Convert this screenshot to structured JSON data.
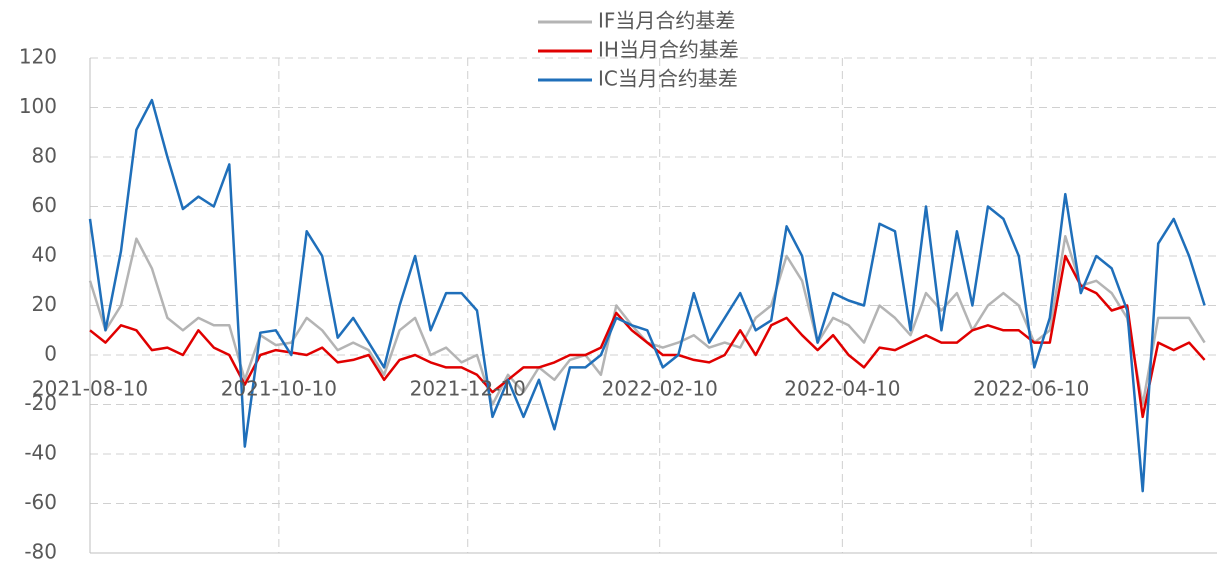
{
  "chart_data": {
    "type": "line",
    "x": [
      "2021-08-10",
      "2021-08-15",
      "2021-08-20",
      "2021-08-25",
      "2021-08-30",
      "2021-09-04",
      "2021-09-09",
      "2021-09-14",
      "2021-09-19",
      "2021-09-24",
      "2021-09-29",
      "2021-10-04",
      "2021-10-09",
      "2021-10-14",
      "2021-10-19",
      "2021-10-24",
      "2021-10-29",
      "2021-11-03",
      "2021-11-08",
      "2021-11-13",
      "2021-11-18",
      "2021-11-23",
      "2021-11-28",
      "2021-12-03",
      "2021-12-08",
      "2021-12-13",
      "2021-12-18",
      "2021-12-23",
      "2021-12-28",
      "2022-01-02",
      "2022-01-07",
      "2022-01-12",
      "2022-01-17",
      "2022-01-22",
      "2022-01-27",
      "2022-02-01",
      "2022-02-06",
      "2022-02-11",
      "2022-02-16",
      "2022-02-21",
      "2022-02-26",
      "2022-03-03",
      "2022-03-08",
      "2022-03-13",
      "2022-03-18",
      "2022-03-23",
      "2022-03-28",
      "2022-04-02",
      "2022-04-07",
      "2022-04-12",
      "2022-04-17",
      "2022-04-22",
      "2022-04-27",
      "2022-05-02",
      "2022-05-07",
      "2022-05-12",
      "2022-05-17",
      "2022-05-22",
      "2022-05-27",
      "2022-06-01",
      "2022-06-06",
      "2022-06-11",
      "2022-06-16",
      "2022-06-21",
      "2022-06-26",
      "2022-07-01",
      "2022-07-06",
      "2022-07-11",
      "2022-07-16",
      "2022-07-21",
      "2022-07-26",
      "2022-07-31",
      "2022-08-05"
    ],
    "series": [
      {
        "name": "IF当月合约基差",
        "color": "#b4b4b4",
        "values": [
          30,
          10,
          20,
          47,
          35,
          15,
          10,
          15,
          12,
          12,
          -10,
          8,
          4,
          5,
          15,
          10,
          2,
          5,
          2,
          -8,
          10,
          15,
          0,
          3,
          -3,
          0,
          -20,
          -8,
          -15,
          -5,
          -10,
          -2,
          0,
          -8,
          20,
          12,
          5,
          3,
          5,
          8,
          3,
          5,
          3,
          15,
          20,
          40,
          30,
          5,
          15,
          12,
          5,
          20,
          15,
          8,
          25,
          18,
          25,
          10,
          20,
          25,
          20,
          5,
          10,
          48,
          28,
          30,
          25,
          15,
          -20,
          15,
          15,
          15,
          5
        ]
      },
      {
        "name": "IH当月合约基差",
        "color": "#e00000",
        "values": [
          10,
          5,
          12,
          10,
          2,
          3,
          0,
          10,
          3,
          0,
          -12,
          0,
          2,
          1,
          0,
          3,
          -3,
          -2,
          0,
          -10,
          -2,
          0,
          -3,
          -5,
          -5,
          -8,
          -15,
          -10,
          -5,
          -5,
          -3,
          0,
          0,
          3,
          17,
          10,
          5,
          0,
          0,
          -2,
          -3,
          0,
          10,
          0,
          12,
          15,
          8,
          2,
          8,
          0,
          -5,
          3,
          2,
          5,
          8,
          5,
          5,
          10,
          12,
          10,
          10,
          5,
          5,
          40,
          28,
          25,
          18,
          20,
          -25,
          5,
          2,
          5,
          -2
        ]
      },
      {
        "name": "IC当月合约基差",
        "color": "#1f6fba",
        "values": [
          55,
          10,
          42,
          91,
          103,
          80,
          59,
          64,
          60,
          77,
          -37,
          9,
          10,
          0,
          50,
          40,
          7,
          15,
          5,
          -5,
          20,
          40,
          10,
          25,
          25,
          18,
          -25,
          -10,
          -25,
          -10,
          -30,
          -5,
          -5,
          0,
          15,
          12,
          10,
          -5,
          0,
          25,
          5,
          15,
          25,
          10,
          14,
          52,
          40,
          5,
          25,
          22,
          20,
          53,
          50,
          10,
          60,
          10,
          50,
          20,
          60,
          55,
          40,
          -5,
          15,
          65,
          25,
          40,
          35,
          18,
          -55,
          45,
          55,
          40,
          20
        ]
      }
    ],
    "xlim": [
      "2021-08-10",
      "2022-08-09"
    ],
    "xticks": [
      "2021-08-10",
      "2021-10-10",
      "2021-12-10",
      "2022-02-10",
      "2022-04-10",
      "2022-06-10"
    ],
    "ylim": [
      -80,
      120
    ],
    "yticks": [
      -80,
      -60,
      -40,
      -20,
      0,
      20,
      40,
      60,
      80,
      100,
      120
    ],
    "grid": true
  }
}
